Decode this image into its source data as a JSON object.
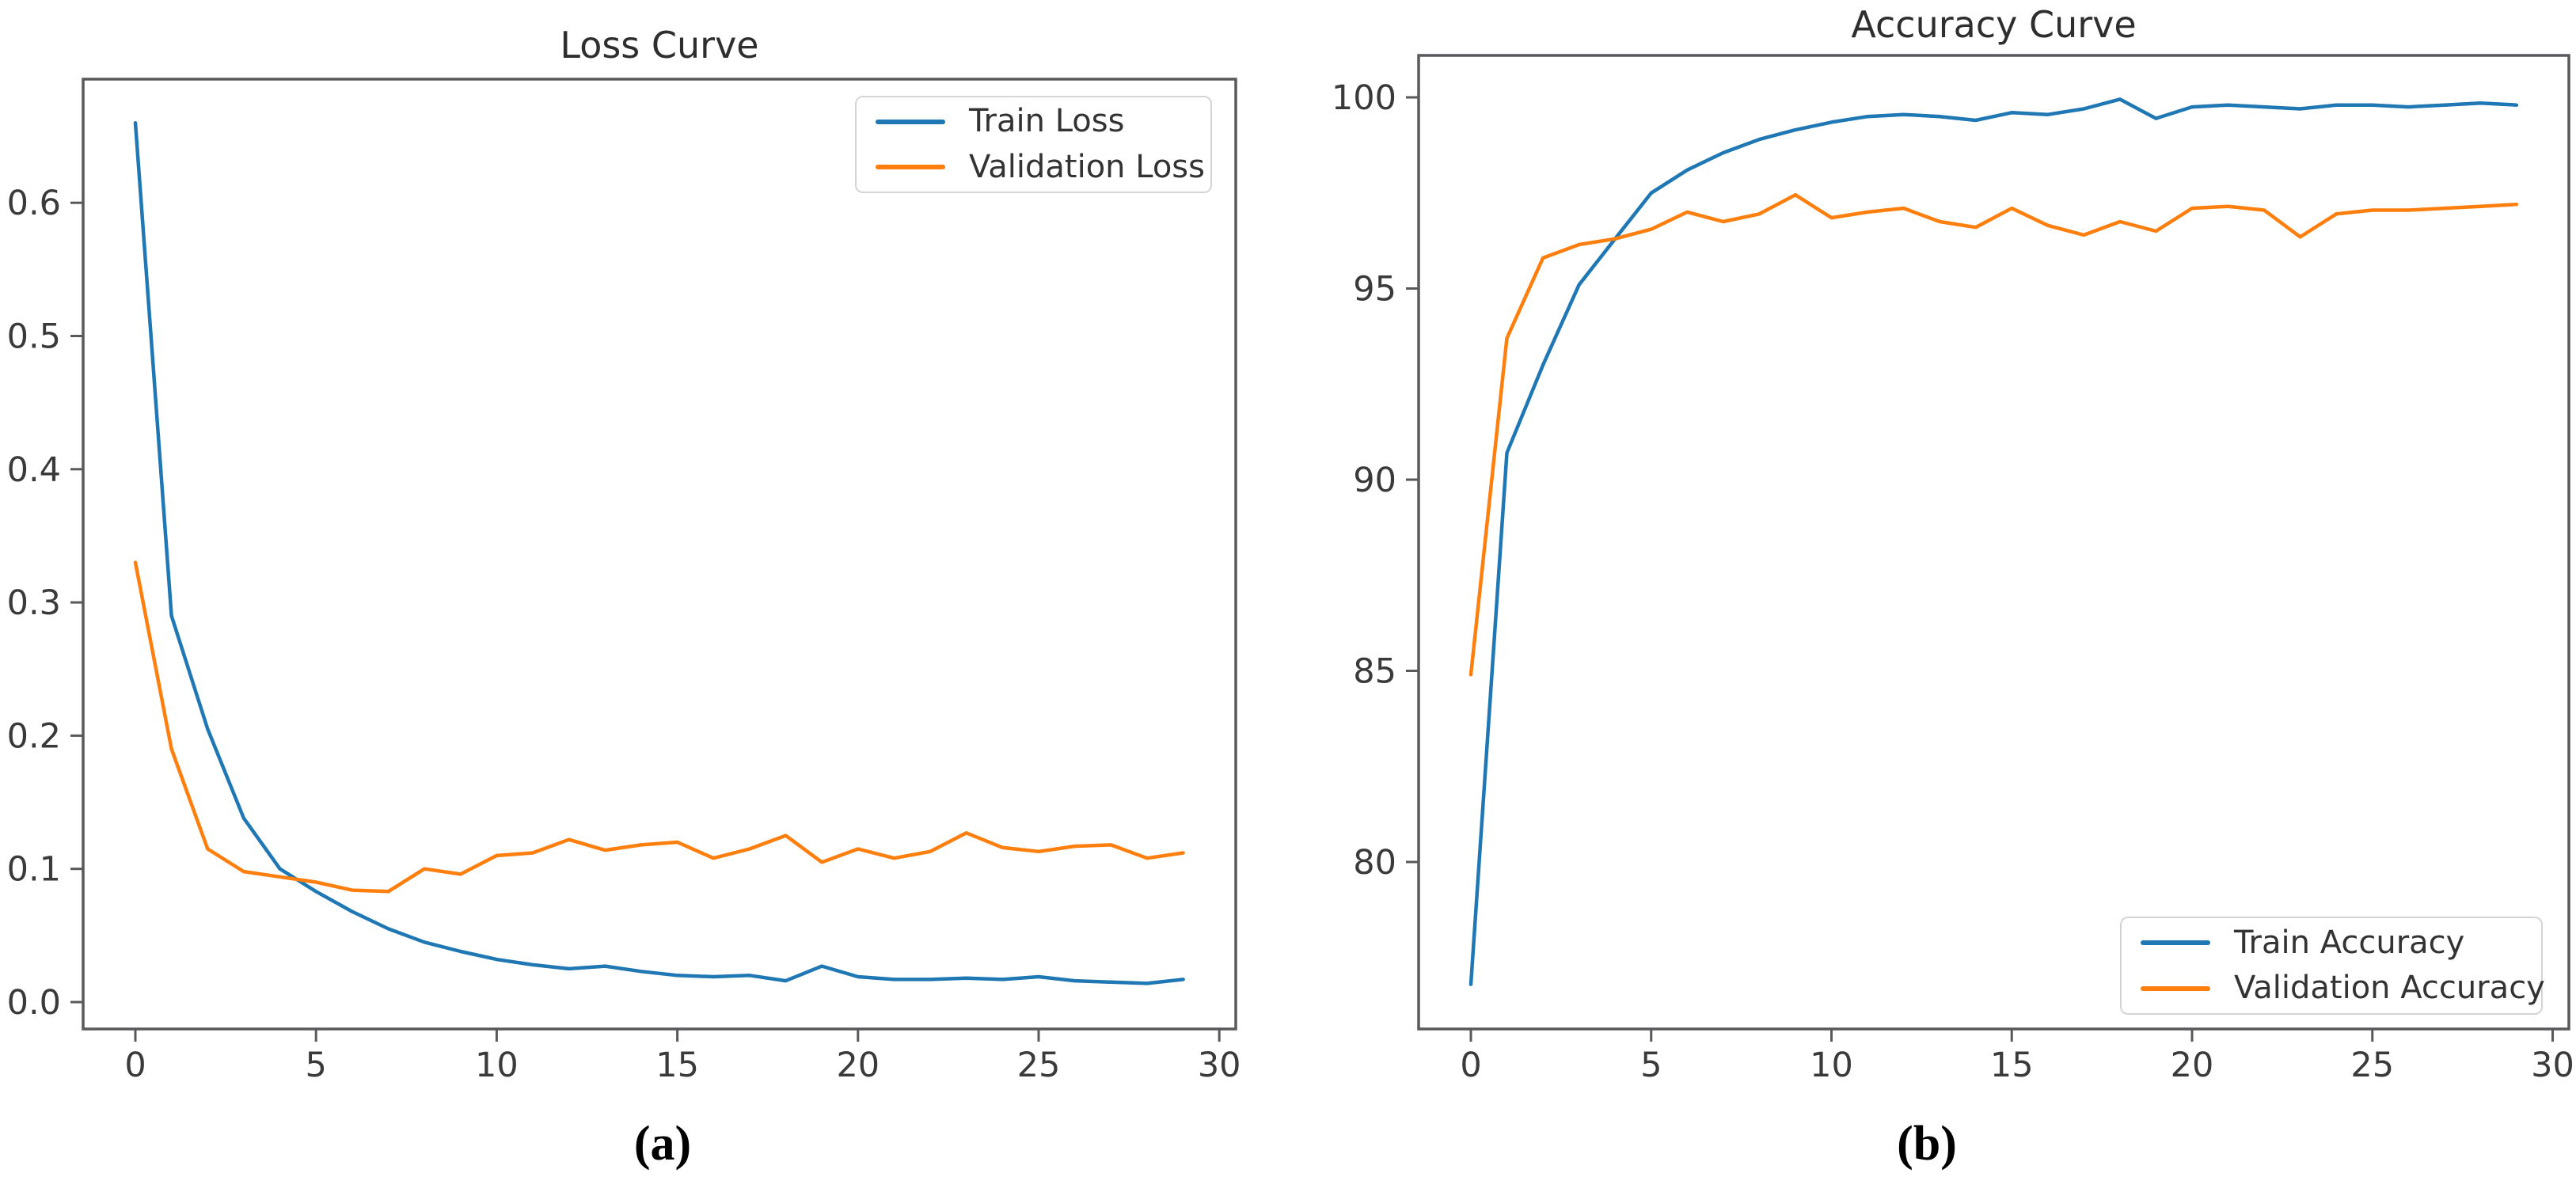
{
  "figure": {
    "background": "#ffffff"
  },
  "chart_data": [
    {
      "type": "line",
      "title": "Loss Curve",
      "panel_label": "(a)",
      "x": [
        0,
        1,
        2,
        3,
        4,
        5,
        6,
        7,
        8,
        9,
        10,
        11,
        12,
        13,
        14,
        15,
        16,
        17,
        18,
        19,
        20,
        21,
        22,
        23,
        24,
        25,
        26,
        27,
        28,
        29
      ],
      "series": [
        {
          "name": "Train Loss",
          "color": "#1f77b4",
          "values": [
            0.66,
            0.29,
            0.205,
            0.138,
            0.1,
            0.083,
            0.068,
            0.055,
            0.045,
            0.038,
            0.032,
            0.028,
            0.025,
            0.027,
            0.023,
            0.02,
            0.019,
            0.02,
            0.016,
            0.027,
            0.019,
            0.017,
            0.017,
            0.018,
            0.017,
            0.019,
            0.016,
            0.015,
            0.014,
            0.017
          ]
        },
        {
          "name": "Validation Loss",
          "color": "#ff7f0e",
          "values": [
            0.33,
            0.19,
            0.115,
            0.098,
            0.094,
            0.09,
            0.084,
            0.083,
            0.1,
            0.096,
            0.11,
            0.112,
            0.122,
            0.114,
            0.118,
            0.12,
            0.108,
            0.115,
            0.125,
            0.105,
            0.115,
            0.108,
            0.113,
            0.127,
            0.116,
            0.113,
            0.117,
            0.118,
            0.108,
            0.112
          ]
        }
      ],
      "xticks": [
        0,
        5,
        10,
        15,
        20,
        25,
        30
      ],
      "xtick_labels": [
        "0",
        "5",
        "10",
        "15",
        "20",
        "25",
        "30"
      ],
      "yticks": [
        0.0,
        0.1,
        0.2,
        0.3,
        0.4,
        0.5,
        0.6
      ],
      "ytick_labels": [
        "0.0",
        "0.1",
        "0.2",
        "0.3",
        "0.4",
        "0.5",
        "0.6"
      ],
      "xlim": [
        -1.45,
        30.45
      ],
      "ylim": [
        -0.02,
        0.692
      ],
      "grid": false,
      "legend_position": "upper right"
    },
    {
      "type": "line",
      "title": "Accuracy Curve",
      "panel_label": "(b)",
      "x": [
        0,
        1,
        2,
        3,
        4,
        5,
        6,
        7,
        8,
        9,
        10,
        11,
        12,
        13,
        14,
        15,
        16,
        17,
        18,
        19,
        20,
        21,
        22,
        23,
        24,
        25,
        26,
        27,
        28,
        29
      ],
      "series": [
        {
          "name": "Train Accuracy",
          "color": "#1f77b4",
          "values": [
            76.8,
            90.7,
            93.0,
            95.1,
            96.3,
            97.5,
            98.1,
            98.55,
            98.9,
            99.15,
            99.35,
            99.5,
            99.55,
            99.5,
            99.4,
            99.6,
            99.55,
            99.7,
            99.95,
            99.45,
            99.75,
            99.8,
            99.75,
            99.7,
            99.8,
            99.8,
            99.75,
            99.8,
            99.85,
            99.8
          ]
        },
        {
          "name": "Validation Accuracy",
          "color": "#ff7f0e",
          "values": [
            84.9,
            93.7,
            95.8,
            96.15,
            96.3,
            96.55,
            97.0,
            96.75,
            96.95,
            97.45,
            96.85,
            97.0,
            97.1,
            96.75,
            96.6,
            97.1,
            96.65,
            96.4,
            96.75,
            96.5,
            97.1,
            97.15,
            97.05,
            96.35,
            96.95,
            97.05,
            97.05,
            97.1,
            97.15,
            97.2
          ]
        }
      ],
      "xticks": [
        0,
        5,
        10,
        15,
        20,
        25,
        30
      ],
      "xtick_labels": [
        "0",
        "5",
        "10",
        "15",
        "20",
        "25",
        "30"
      ],
      "yticks": [
        80,
        85,
        90,
        95,
        100
      ],
      "ytick_labels": [
        "80",
        "85",
        "90",
        "95",
        "100"
      ],
      "xlim": [
        -1.45,
        30.45
      ],
      "ylim": [
        75.2,
        101.1
      ],
      "grid": false,
      "legend_position": "lower right"
    }
  ]
}
